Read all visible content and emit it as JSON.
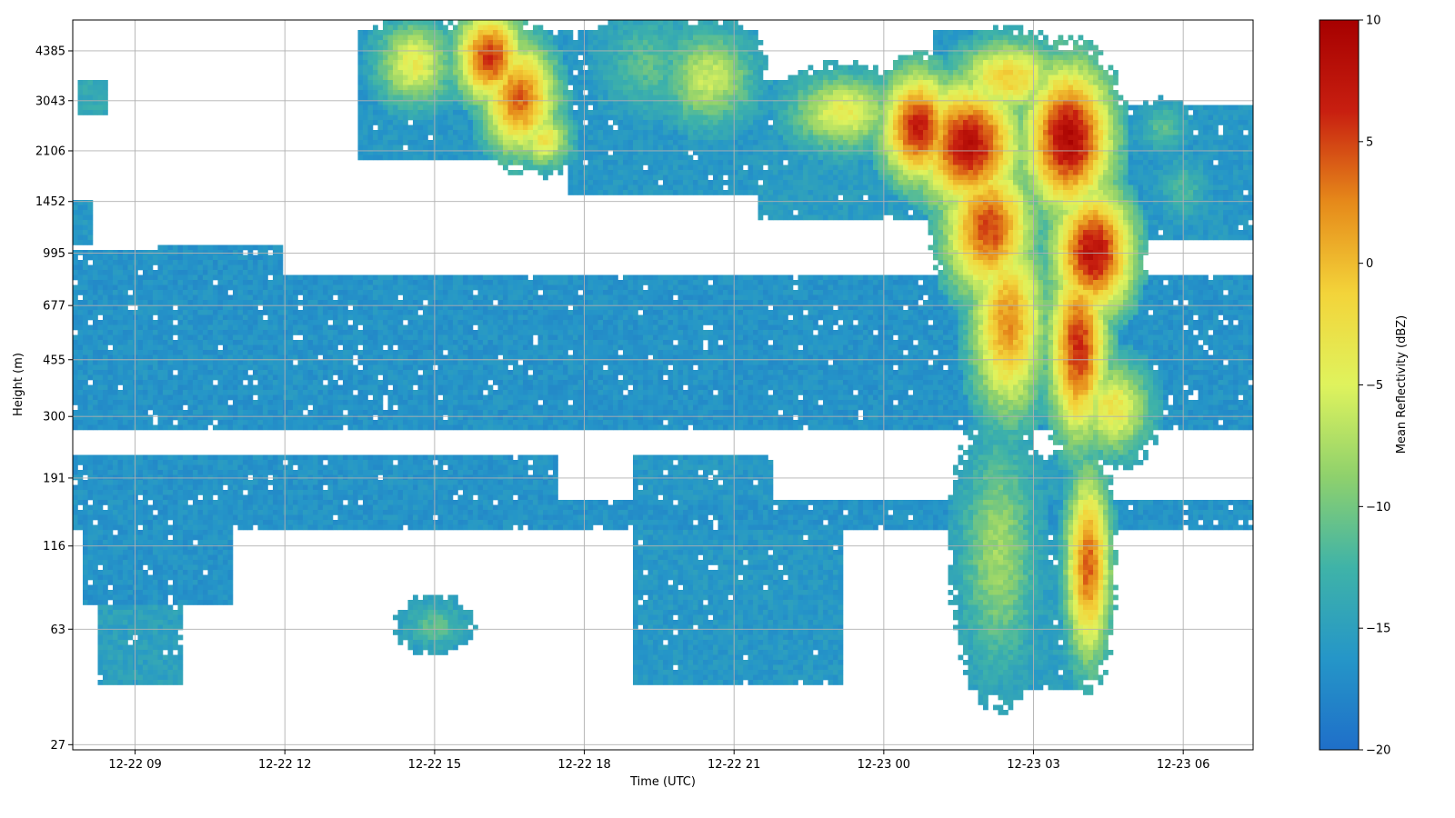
{
  "chart_data": {
    "type": "heatmap",
    "xlabel": "Time (UTC)",
    "ylabel": "Height (m)",
    "x_ticks": [
      "12-22 09",
      "12-22 12",
      "12-22 15",
      "12-22 18",
      "12-22 21",
      "12-23 00",
      "12-23 03",
      "12-23 06"
    ],
    "x_range_hours": [
      7.75,
      31.4
    ],
    "y_scale": "log",
    "y_ticks": [
      27,
      63,
      116,
      191,
      300,
      455,
      677,
      995,
      1452,
      2106,
      3043,
      4385
    ],
    "y_range": [
      26,
      5500
    ],
    "grid": true,
    "colorbar": {
      "label": "Mean Reflectivity (dBZ)",
      "min": -20,
      "max": 10,
      "ticks": [
        10,
        5,
        0,
        -5,
        -10,
        -15,
        -20
      ],
      "colors": [
        "#1f6fc9",
        "#2596c8",
        "#3fb3a8",
        "#8fd16c",
        "#dff35d",
        "#f3d43a",
        "#e68a1a",
        "#c81f10",
        "#a60000"
      ]
    },
    "regions": [
      {
        "t": [
          7.8,
          31.4
        ],
        "h": [
          270,
          850
        ],
        "dbz": -16.5
      },
      {
        "t": [
          7.8,
          31.4
        ],
        "h": [
          130,
          165
        ],
        "dbz": -16.5
      },
      {
        "t": [
          7.8,
          17.5
        ],
        "h": [
          165,
          230
        ],
        "dbz": -16.5
      },
      {
        "t": [
          7.8,
          9.5
        ],
        "h": [
          850,
          1000
        ],
        "dbz": -16.5
      },
      {
        "t": [
          9.5,
          12.0
        ],
        "h": [
          850,
          1050
        ],
        "dbz": -16.5
      },
      {
        "t": [
          7.8,
          8.2
        ],
        "h": [
          1050,
          1450
        ],
        "dbz": -16.0
      },
      {
        "t": [
          8.0,
          11.0
        ],
        "h": [
          75,
          130
        ],
        "dbz": -16.5
      },
      {
        "t": [
          8.3,
          10.0
        ],
        "h": [
          42,
          75
        ],
        "dbz": -15.0
      },
      {
        "t": [
          19.0,
          21.8
        ],
        "h": [
          42,
          230
        ],
        "dbz": -16.0
      },
      {
        "t": [
          21.8,
          23.2
        ],
        "h": [
          42,
          165
        ],
        "dbz": -16.0
      },
      {
        "t": [
          19.0,
          23.0
        ],
        "h": [
          48,
          65
        ],
        "dbz": -11.5
      },
      {
        "t": [
          25.8,
          28.0
        ],
        "h": [
          40,
          230
        ],
        "dbz": -15.0
      },
      {
        "t": [
          7.9,
          8.5
        ],
        "h": [
          2700,
          3600
        ],
        "dbz": -14.0
      },
      {
        "t": [
          13.5,
          17.7
        ],
        "h": [
          2000,
          5200
        ],
        "dbz": -16.0
      },
      {
        "t": [
          17.7,
          21.5
        ],
        "h": [
          1500,
          5200
        ],
        "dbz": -16.0
      },
      {
        "t": [
          21.5,
          25.0
        ],
        "h": [
          1250,
          3600
        ],
        "dbz": -15.5
      },
      {
        "t": [
          25.0,
          26.5
        ],
        "h": [
          1000,
          5200
        ],
        "dbz": -16.0
      },
      {
        "t": [
          26.5,
          31.4
        ],
        "h": [
          1100,
          3000
        ],
        "dbz": -16.0
      },
      {
        "t": [
          30.6,
          31.0
        ],
        "h": [
          2100,
          2600
        ],
        "dbz": -16.0
      }
    ],
    "blobs": [
      {
        "t": 14.6,
        "h": 4000,
        "dt": 0.5,
        "dlog": 0.09,
        "dbz": -4
      },
      {
        "t": 16.1,
        "h": 4200,
        "dt": 0.45,
        "dlog": 0.1,
        "dbz": 6
      },
      {
        "t": 16.7,
        "h": 3100,
        "dt": 0.5,
        "dlog": 0.12,
        "dbz": 4
      },
      {
        "t": 17.2,
        "h": 2300,
        "dt": 0.35,
        "dlog": 0.06,
        "dbz": -3
      },
      {
        "t": 19.3,
        "h": 4000,
        "dt": 0.6,
        "dlog": 0.1,
        "dbz": -11
      },
      {
        "t": 20.5,
        "h": 3600,
        "dt": 0.6,
        "dlog": 0.1,
        "dbz": -6
      },
      {
        "t": 23.2,
        "h": 2800,
        "dt": 0.7,
        "dlog": 0.08,
        "dbz": -4
      },
      {
        "t": 24.7,
        "h": 2500,
        "dt": 0.5,
        "dlog": 0.12,
        "dbz": 7
      },
      {
        "t": 25.7,
        "h": 2200,
        "dt": 0.7,
        "dlog": 0.14,
        "dbz": 8
      },
      {
        "t": 26.1,
        "h": 1200,
        "dt": 0.6,
        "dlog": 0.15,
        "dbz": 5
      },
      {
        "t": 26.5,
        "h": 600,
        "dt": 0.5,
        "dlog": 0.2,
        "dbz": 2
      },
      {
        "t": 26.5,
        "h": 3600,
        "dt": 0.7,
        "dlog": 0.08,
        "dbz": -1
      },
      {
        "t": 27.7,
        "h": 2300,
        "dt": 0.6,
        "dlog": 0.16,
        "dbz": 9
      },
      {
        "t": 28.2,
        "h": 1000,
        "dt": 0.55,
        "dlog": 0.14,
        "dbz": 8
      },
      {
        "t": 27.9,
        "h": 500,
        "dt": 0.4,
        "dlog": 0.2,
        "dbz": 6
      },
      {
        "t": 28.6,
        "h": 320,
        "dt": 0.5,
        "dlog": 0.1,
        "dbz": -3
      },
      {
        "t": 28.1,
        "h": 100,
        "dt": 0.3,
        "dlog": 0.2,
        "dbz": 4
      },
      {
        "t": 26.3,
        "h": 110,
        "dt": 0.5,
        "dlog": 0.25,
        "dbz": -8
      },
      {
        "t": 29.6,
        "h": 2500,
        "dt": 0.3,
        "dlog": 0.05,
        "dbz": -11
      },
      {
        "t": 30.0,
        "h": 1600,
        "dt": 0.3,
        "dlog": 0.06,
        "dbz": -12
      },
      {
        "t": 15.0,
        "h": 65,
        "dt": 0.4,
        "dlog": 0.05,
        "dbz": -11
      }
    ]
  }
}
